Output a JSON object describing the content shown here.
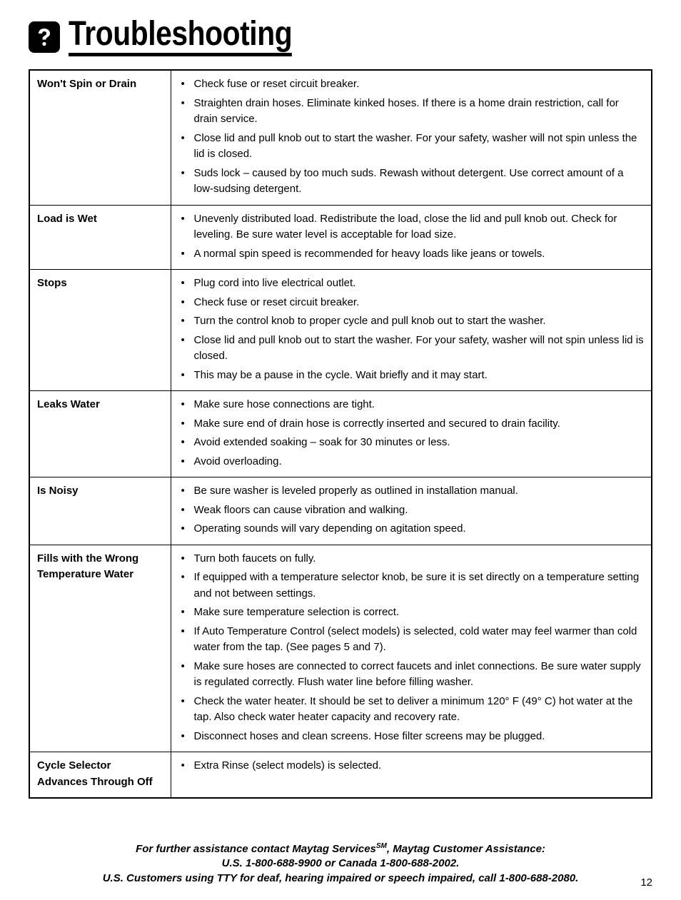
{
  "page": {
    "title": "Troubleshooting",
    "number": "12"
  },
  "table": {
    "rows": [
      {
        "issue": "Won't Spin or Drain",
        "steps": [
          "Check fuse or reset circuit breaker.",
          "Straighten drain hoses. Eliminate kinked hoses. If there is a home drain restriction, call for drain service.",
          "Close lid and pull knob out to start the washer. For your safety, washer will not spin unless the lid is closed.",
          "Suds lock – caused by too much suds. Rewash without detergent. Use correct amount of a low-sudsing detergent."
        ]
      },
      {
        "issue": "Load is Wet",
        "steps": [
          "Unevenly distributed load. Redistribute the load, close the lid and pull knob out. Check for leveling. Be sure water level is acceptable for load size.",
          "A normal spin speed is recommended for heavy loads like jeans or towels."
        ]
      },
      {
        "issue": "Stops",
        "steps": [
          "Plug cord into live electrical outlet.",
          "Check fuse or reset circuit breaker.",
          "Turn the control knob to proper cycle and pull knob out to start the washer.",
          "Close lid and pull knob out to start the washer. For your safety, washer will not spin unless lid is closed.",
          "This may be a pause in the cycle. Wait briefly and it may start."
        ]
      },
      {
        "issue": "Leaks Water",
        "steps": [
          "Make sure hose connections are tight.",
          "Make sure end of drain hose is correctly inserted and secured to drain facility.",
          "Avoid extended soaking – soak for 30 minutes or less.",
          "Avoid overloading."
        ]
      },
      {
        "issue": "Is Noisy",
        "steps": [
          "Be sure washer is leveled properly as outlined in installation manual.",
          "Weak floors can cause vibration and walking.",
          "Operating sounds will vary depending on agitation speed."
        ]
      },
      {
        "issue": "Fills with the Wrong Temperature Water",
        "steps": [
          "Turn both faucets on fully.",
          "If equipped with a temperature selector knob, be sure it is set directly on a temperature setting and not between settings.",
          "Make sure temperature selection is correct.",
          "If Auto Temperature Control (select models) is selected, cold water may feel warmer than cold water from the tap. (See pages 5 and 7).",
          "Make sure hoses are connected to correct faucets and inlet connections. Be sure water supply is regulated correctly. Flush water line before filling washer.",
          "Check the water heater. It should be set to deliver a minimum 120° F (49° C) hot water at the tap. Also check water heater capacity and recovery rate.",
          "Disconnect hoses and clean screens. Hose filter screens may be plugged."
        ]
      },
      {
        "issue": "Cycle Selector Advances Through Off",
        "steps": [
          "Extra Rinse (select models) is selected."
        ]
      }
    ]
  },
  "footer": {
    "line1_a": "For further assistance contact Maytag Services",
    "line1_sm": "SM",
    "line1_b": ", Maytag Customer Assistance:",
    "line2": "U.S. 1-800-688-9900 or Canada 1-800-688-2002.",
    "line3": "U.S. Customers using TTY for deaf, hearing impaired or speech impaired, call 1-800-688-2080."
  }
}
